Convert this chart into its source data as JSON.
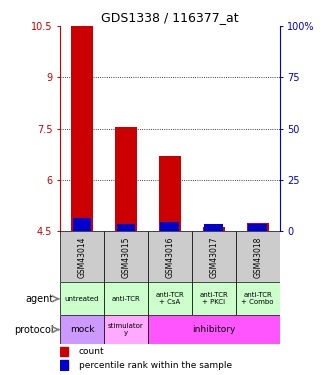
{
  "title": "GDS1338 / 116377_at",
  "samples": [
    "GSM43014",
    "GSM43015",
    "GSM43016",
    "GSM43017",
    "GSM43018"
  ],
  "red_bar_bottom": [
    4.5,
    4.5,
    4.5,
    4.5,
    4.5
  ],
  "red_bar_top": [
    10.5,
    7.55,
    6.7,
    4.62,
    4.75
  ],
  "blue_bar_bottom": [
    4.5,
    4.5,
    4.5,
    4.5,
    4.5
  ],
  "blue_bar_top": [
    4.9,
    4.72,
    4.78,
    4.72,
    4.72
  ],
  "ylim": [
    4.5,
    10.5
  ],
  "yticks": [
    4.5,
    6.0,
    7.5,
    9.0,
    10.5
  ],
  "ytick_labels": [
    "4.5",
    "6",
    "7.5",
    "9",
    "10.5"
  ],
  "y2ticks": [
    0,
    25,
    50,
    75,
    100
  ],
  "y2tick_labels": [
    "0",
    "25",
    "50",
    "75",
    "100%"
  ],
  "left_color": "#cc0000",
  "right_color": "#0000cc",
  "agent_labels": [
    "untreated",
    "anti-TCR",
    "anti-TCR\n+ CsA",
    "anti-TCR\n+ PKCi",
    "anti-TCR\n+ Combo"
  ],
  "agent_bg": "#ccffcc",
  "protocol_mock_bg": "#cc99ff",
  "protocol_stim_bg": "#ffaaff",
  "protocol_inhib_bg": "#ff55ff",
  "sample_bg": "#cccccc",
  "bar_width": 0.5,
  "dotted_yticks": [
    6.0,
    7.5,
    9.0
  ],
  "legend_red": "count",
  "legend_blue": "percentile rank within the sample"
}
